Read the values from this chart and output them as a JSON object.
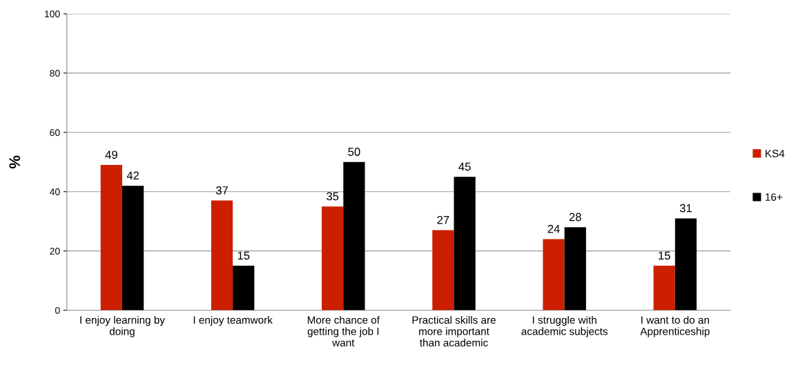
{
  "chart_data": {
    "type": "bar",
    "ylabel": "%",
    "categories": [
      "I enjoy learning by\ndoing",
      "I enjoy teamwork",
      "More chance of\ngetting the job I\nwant",
      "Practical skills are\nmore important\nthan academic",
      "I struggle with\nacademic subjects",
      "I want to do an\nApprenticeship"
    ],
    "series": [
      {
        "name": "KS4",
        "color": "#cc1f00",
        "values": [
          49,
          37,
          35,
          27,
          24,
          15
        ]
      },
      {
        "name": "16+",
        "color": "#000000",
        "values": [
          42,
          15,
          50,
          45,
          28,
          31
        ]
      }
    ],
    "ylim": [
      0,
      100
    ],
    "yticks": [
      0,
      20,
      40,
      60,
      80,
      100
    ],
    "grid": "y",
    "legend": "right",
    "data_labels": true
  }
}
